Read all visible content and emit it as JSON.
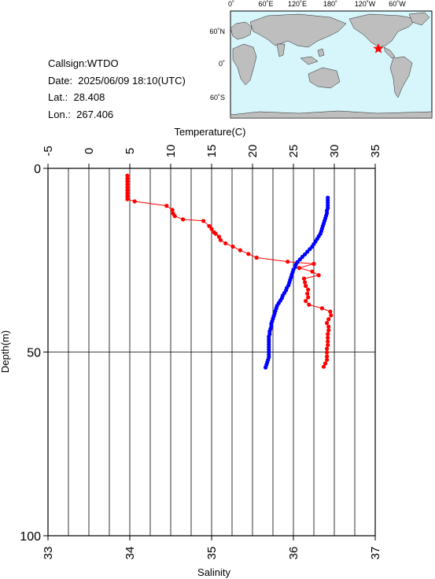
{
  "info": {
    "callsign": "Callsign:WTDO",
    "date": "Date:  2025/06/09 18:10(UTC)",
    "lat_label": "Lat.:",
    "lat_value": "28.408",
    "lon_label": "Lon.:",
    "lon_value": "267.406"
  },
  "map": {
    "lon_labels": [
      "0˚",
      "60˚E",
      "120˚E",
      "180˚",
      "120˚W",
      "60˚W"
    ],
    "lat_labels": [
      "60˚N",
      "0˚",
      "60˚S"
    ],
    "marker": "red-star",
    "ocean_color": "#d6f6fb",
    "land_color": "#bebebe"
  },
  "chart_data": {
    "type": "line",
    "ylabel": "Depth(m)",
    "top_axis": {
      "label": "Temperature(C)",
      "range": [
        -5,
        35
      ],
      "ticks": [
        "-5",
        "0",
        "5",
        "10",
        "15",
        "20",
        "25",
        "30",
        "35"
      ]
    },
    "bottom_axis": {
      "label": "Salinity",
      "range": [
        33,
        37
      ],
      "ticks": [
        "33",
        "34",
        "35",
        "36",
        "37"
      ]
    },
    "y_axis": {
      "range": [
        0,
        100
      ],
      "reversed": true,
      "ticks": [
        "0",
        "50",
        "100"
      ]
    },
    "grid": true,
    "series": [
      {
        "quantity": "temperature",
        "color": "#ff0000",
        "points": [
          [
            4.7,
            2
          ],
          [
            4.7,
            2.8
          ],
          [
            4.7,
            3.6
          ],
          [
            4.7,
            4.4
          ],
          [
            4.7,
            5.2
          ],
          [
            4.7,
            6
          ],
          [
            4.7,
            6.8
          ],
          [
            4.7,
            7.6
          ],
          [
            4.7,
            8.4
          ],
          [
            5.6,
            9
          ],
          [
            9.5,
            10.2
          ],
          [
            10.2,
            11.3
          ],
          [
            10.3,
            12.3
          ],
          [
            10.5,
            13
          ],
          [
            11.5,
            13.9
          ],
          [
            14,
            14.3
          ],
          [
            14.7,
            15.7
          ],
          [
            15,
            16.5
          ],
          [
            15.3,
            17.4
          ],
          [
            15.5,
            17.8
          ],
          [
            15.9,
            18.6
          ],
          [
            16.1,
            19.5
          ],
          [
            16.7,
            20.4
          ],
          [
            17.6,
            21.3
          ],
          [
            18.5,
            22.3
          ],
          [
            19.5,
            23.3
          ],
          [
            20.5,
            24.3
          ],
          [
            24.3,
            25.4
          ],
          [
            27.5,
            26
          ],
          [
            25.7,
            27.1
          ],
          [
            27.3,
            28.1
          ],
          [
            28.1,
            29.1
          ],
          [
            26.3,
            30
          ],
          [
            26.4,
            31
          ],
          [
            26.5,
            32
          ],
          [
            26.8,
            33
          ],
          [
            26.7,
            34.1
          ],
          [
            26.8,
            35.1
          ],
          [
            26.5,
            36.1
          ],
          [
            26.9,
            37.1
          ],
          [
            28.5,
            38.1
          ],
          [
            29.5,
            39
          ],
          [
            29.6,
            40
          ],
          [
            29.3,
            41.1
          ],
          [
            29.1,
            42.1
          ],
          [
            29.3,
            43.1
          ],
          [
            29.3,
            44.1
          ],
          [
            29.2,
            45.1
          ],
          [
            29.2,
            46.1
          ],
          [
            29.2,
            47.1
          ],
          [
            29.2,
            48.1
          ],
          [
            29.1,
            49.1
          ],
          [
            29.1,
            50.1
          ],
          [
            29.1,
            51.2
          ],
          [
            29.1,
            52.1
          ],
          [
            28.9,
            53.1
          ],
          [
            28.7,
            54
          ]
        ]
      },
      {
        "quantity": "salinity",
        "color": "#0000ff",
        "points": [
          [
            36.42,
            8
          ],
          [
            36.42,
            8.7
          ],
          [
            36.42,
            9.4
          ],
          [
            36.42,
            10.1
          ],
          [
            36.42,
            10.8
          ],
          [
            36.41,
            11.5
          ],
          [
            36.41,
            12.2
          ],
          [
            36.4,
            12.9
          ],
          [
            36.39,
            13.6
          ],
          [
            36.38,
            14.3
          ],
          [
            36.37,
            15
          ],
          [
            36.36,
            15.7
          ],
          [
            36.35,
            16.4
          ],
          [
            36.34,
            17.1
          ],
          [
            36.33,
            17.8
          ],
          [
            36.31,
            18.5
          ],
          [
            36.29,
            19.2
          ],
          [
            36.27,
            19.9
          ],
          [
            36.25,
            20.6
          ],
          [
            36.23,
            21.3
          ],
          [
            36.2,
            22
          ],
          [
            36.17,
            22.7
          ],
          [
            36.14,
            23.4
          ],
          [
            36.11,
            24.1
          ],
          [
            36.08,
            24.8
          ],
          [
            36.05,
            25.5
          ],
          [
            36.03,
            26.2
          ],
          [
            36.02,
            26.9
          ],
          [
            36.0,
            27.6
          ],
          [
            35.99,
            28.3
          ],
          [
            35.98,
            29
          ],
          [
            35.97,
            29.7
          ],
          [
            35.96,
            30.4
          ],
          [
            35.95,
            31.1
          ],
          [
            35.94,
            31.8
          ],
          [
            35.92,
            32.5
          ],
          [
            35.91,
            33.2
          ],
          [
            35.89,
            33.9
          ],
          [
            35.87,
            34.6
          ],
          [
            35.86,
            35.3
          ],
          [
            35.84,
            36
          ],
          [
            35.82,
            36.7
          ],
          [
            35.8,
            37.4
          ],
          [
            35.79,
            38.1
          ],
          [
            35.78,
            38.8
          ],
          [
            35.77,
            39.5
          ],
          [
            35.76,
            40.2
          ],
          [
            35.75,
            40.9
          ],
          [
            35.74,
            41.6
          ],
          [
            35.73,
            42.3
          ],
          [
            35.73,
            43
          ],
          [
            35.72,
            43.7
          ],
          [
            35.71,
            44.4
          ],
          [
            35.71,
            45.1
          ],
          [
            35.7,
            45.8
          ],
          [
            35.7,
            46.5
          ],
          [
            35.7,
            47.2
          ],
          [
            35.7,
            47.9
          ],
          [
            35.7,
            48.6
          ],
          [
            35.7,
            49.3
          ],
          [
            35.7,
            50
          ],
          [
            35.7,
            50.7
          ],
          [
            35.7,
            51.4
          ],
          [
            35.69,
            52.1
          ],
          [
            35.68,
            52.8
          ],
          [
            35.67,
            53.5
          ],
          [
            35.66,
            54.2
          ]
        ]
      }
    ]
  }
}
